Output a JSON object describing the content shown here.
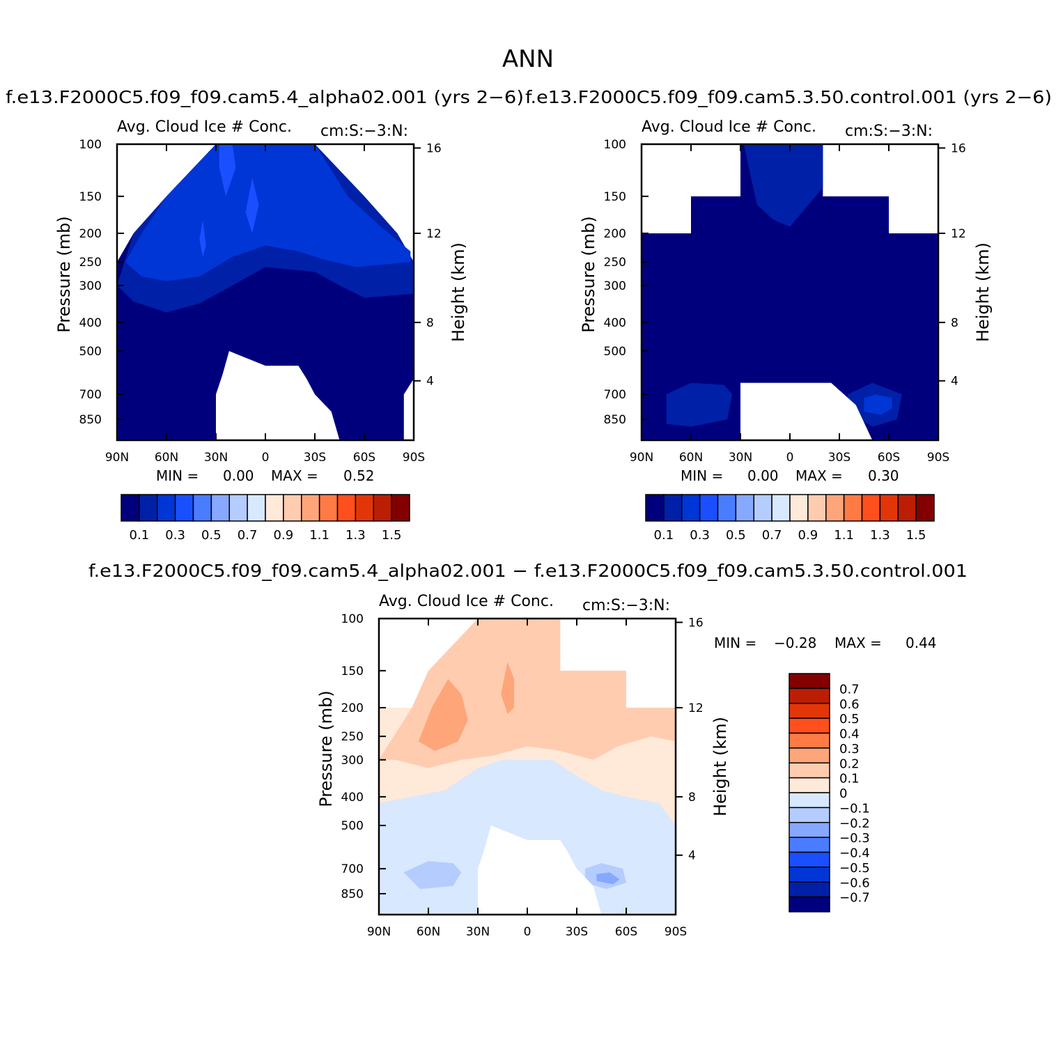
{
  "figure": {
    "title": "ANN",
    "panel1_title": "f.e13.F2000C5.f09_f09.cam5.4_alpha02.001 (yrs 2−6)",
    "panel2_title": "f.e13.F2000C5.f09_f09.cam5.3.50.control.001 (yrs 2−6)",
    "panel3_title": "f.e13.F2000C5.f09_f09.cam5.4_alpha02.001 − f.e13.F2000C5.f09_f09.cam5.3.50.control.001"
  },
  "colors": {
    "levels_abs": [
      "#00007d",
      "#0020a8",
      "#0036d6",
      "#1a4fff",
      "#4a7cff",
      "#86a8ff",
      "#b5ccff",
      "#d8e8ff",
      "#ffe9d9",
      "#ffccb0",
      "#ffa57a",
      "#ff7a45",
      "#ff4f1c",
      "#e33608",
      "#bb1e04",
      "#820000"
    ],
    "levels_diff": [
      "#00007d",
      "#0020a8",
      "#0036d6",
      "#1a4fff",
      "#4a7cff",
      "#86a8ff",
      "#b5ccff",
      "#d8e8ff",
      "#ffe9d9",
      "#ffccb0",
      "#ffa57a",
      "#ff7a45",
      "#ff4f1c",
      "#e33608",
      "#bb1e04",
      "#820000"
    ]
  },
  "chart_data": [
    {
      "type": "heatmap",
      "title": "Avg. Cloud Ice # Conc.",
      "units_label": "cm:S:−3:N:",
      "xlabel": "",
      "ylabel": "Pressure (mb)",
      "ylabel_right": "Height (km)",
      "x_ticks": [
        "90N",
        "60N",
        "30N",
        "0",
        "30S",
        "60S",
        "90S"
      ],
      "y_ticks": [
        "100",
        "150",
        "200",
        "250",
        "300",
        "400",
        "500",
        "700",
        "850"
      ],
      "y_ticks_right": [
        "16",
        "12",
        "8",
        "4"
      ],
      "xlim": [
        90,
        -90
      ],
      "ylim": [
        100,
        1000
      ],
      "y_scale": "log",
      "min_label": "MIN =",
      "min_value": "0.00",
      "max_label": "MAX =",
      "max_value": "0.52",
      "colorbar_labels": [
        "0.1",
        "0.3",
        "0.5",
        "0.7",
        "0.9",
        "1.1",
        "1.3",
        "1.5"
      ],
      "summary_levels": [
        {
          "pressure": 150,
          "value": 0.25
        },
        {
          "pressure": 250,
          "value": 0.15
        },
        {
          "pressure": 400,
          "value": 0.05
        },
        {
          "pressure": 700,
          "value": 0.02
        }
      ]
    },
    {
      "type": "heatmap",
      "title": "Avg. Cloud Ice # Conc.",
      "units_label": "cm:S:−3:N:",
      "xlabel": "",
      "ylabel": "Pressure (mb)",
      "ylabel_right": "Height (km)",
      "x_ticks": [
        "90N",
        "60N",
        "30N",
        "0",
        "30S",
        "60S",
        "90S"
      ],
      "y_ticks": [
        "100",
        "150",
        "200",
        "250",
        "300",
        "400",
        "500",
        "700",
        "850"
      ],
      "y_ticks_right": [
        "16",
        "12",
        "8",
        "4"
      ],
      "xlim": [
        90,
        -90
      ],
      "ylim": [
        100,
        1000
      ],
      "y_scale": "log",
      "min_label": "MIN =",
      "min_value": "0.00",
      "max_label": "MAX =",
      "max_value": "0.30",
      "colorbar_labels": [
        "0.1",
        "0.3",
        "0.5",
        "0.7",
        "0.9",
        "1.1",
        "1.3",
        "1.5"
      ],
      "summary_levels": [
        {
          "pressure": 150,
          "value": 0.05
        },
        {
          "pressure": 400,
          "value": 0.03
        },
        {
          "pressure": 750,
          "value": 0.12
        }
      ]
    },
    {
      "type": "heatmap",
      "title": "Avg. Cloud Ice # Conc.",
      "units_label": "cm:S:−3:N:",
      "xlabel": "",
      "ylabel": "Pressure (mb)",
      "ylabel_right": "Height (km)",
      "x_ticks": [
        "90N",
        "60N",
        "30N",
        "0",
        "30S",
        "60S",
        "90S"
      ],
      "y_ticks": [
        "100",
        "150",
        "200",
        "250",
        "300",
        "400",
        "500",
        "700",
        "850"
      ],
      "y_ticks_right": [
        "16",
        "12",
        "8",
        "4"
      ],
      "xlim": [
        90,
        -90
      ],
      "ylim": [
        100,
        1000
      ],
      "y_scale": "log",
      "min_label": "MIN =",
      "min_value": "−0.28",
      "max_label": "MAX =",
      "max_value": "0.44",
      "colorbar_labels": [
        "0.7",
        "0.6",
        "0.5",
        "0.4",
        "0.3",
        "0.2",
        "0.1",
        "0",
        "−0.1",
        "−0.2",
        "−0.3",
        "−0.4",
        "−0.5",
        "−0.6",
        "−0.7"
      ],
      "summary_levels": [
        {
          "pressure": 200,
          "value": 0.15
        },
        {
          "pressure": 300,
          "value": 0.05
        },
        {
          "pressure": 500,
          "value": -0.05
        },
        {
          "pressure": 750,
          "value": -0.15
        }
      ]
    }
  ]
}
